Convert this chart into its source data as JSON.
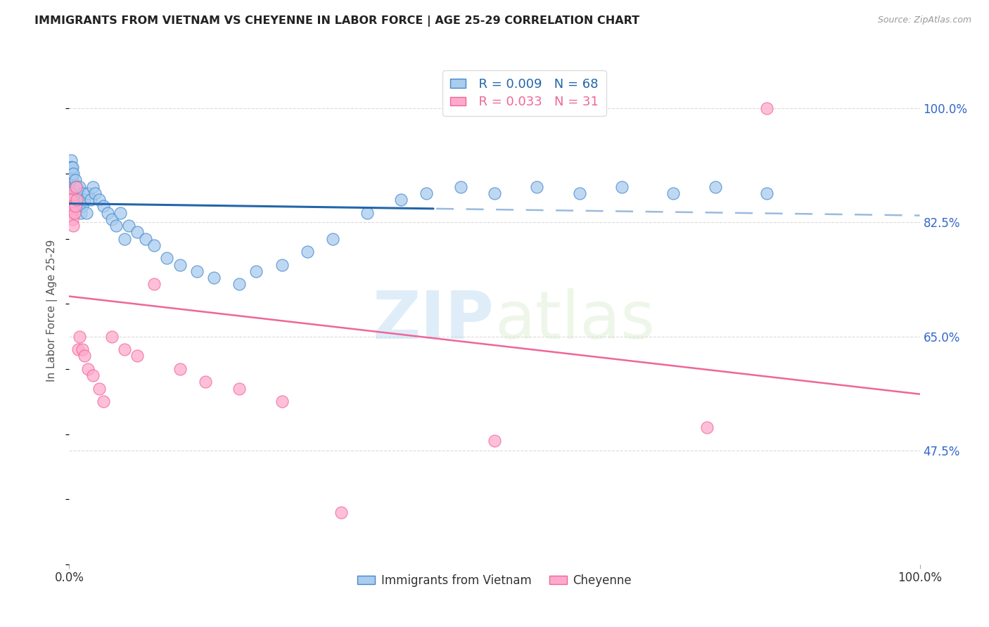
{
  "title": "IMMIGRANTS FROM VIETNAM VS CHEYENNE IN LABOR FORCE | AGE 25-29 CORRELATION CHART",
  "source": "Source: ZipAtlas.com",
  "ylabel": "In Labor Force | Age 25-29",
  "xlim": [
    0,
    1
  ],
  "ylim": [
    0.3,
    1.08
  ],
  "yticks": [
    0.475,
    0.65,
    0.825,
    1.0
  ],
  "ytick_labels": [
    "47.5%",
    "65.0%",
    "82.5%",
    "100.0%"
  ],
  "xtick_labels": [
    "0.0%",
    "100.0%"
  ],
  "legend_r_blue": "R = 0.009",
  "legend_n_blue": "N = 68",
  "legend_r_pink": "R = 0.033",
  "legend_n_pink": "N = 31",
  "blue_fill": "#aaccee",
  "blue_edge": "#4488cc",
  "blue_line": "#2266aa",
  "blue_dash": "#99bbdd",
  "pink_fill": "#ffaacc",
  "pink_edge": "#ee6699",
  "pink_line": "#ee6699",
  "watermark_color": "#cce4f7",
  "grid_color": "#cccccc",
  "title_color": "#222222",
  "source_color": "#999999",
  "ylabel_color": "#555555",
  "tick_color": "#333333",
  "right_tick_color": "#3366cc",
  "blue_scatter_x": [
    0.001,
    0.001,
    0.002,
    0.002,
    0.002,
    0.003,
    0.003,
    0.003,
    0.003,
    0.004,
    0.004,
    0.004,
    0.005,
    0.005,
    0.005,
    0.006,
    0.006,
    0.007,
    0.007,
    0.008,
    0.008,
    0.009,
    0.009,
    0.01,
    0.01,
    0.011,
    0.012,
    0.013,
    0.014,
    0.015,
    0.016,
    0.018,
    0.02,
    0.022,
    0.025,
    0.028,
    0.03,
    0.035,
    0.04,
    0.045,
    0.05,
    0.055,
    0.06,
    0.065,
    0.07,
    0.08,
    0.09,
    0.1,
    0.115,
    0.13,
    0.15,
    0.17,
    0.2,
    0.22,
    0.25,
    0.28,
    0.31,
    0.35,
    0.39,
    0.42,
    0.46,
    0.5,
    0.55,
    0.6,
    0.65,
    0.71,
    0.76,
    0.82
  ],
  "blue_scatter_y": [
    0.91,
    0.9,
    0.92,
    0.91,
    0.89,
    0.9,
    0.91,
    0.88,
    0.87,
    0.91,
    0.89,
    0.88,
    0.9,
    0.87,
    0.86,
    0.88,
    0.87,
    0.89,
    0.86,
    0.88,
    0.85,
    0.87,
    0.88,
    0.86,
    0.85,
    0.87,
    0.88,
    0.86,
    0.84,
    0.85,
    0.87,
    0.86,
    0.84,
    0.87,
    0.86,
    0.88,
    0.87,
    0.86,
    0.85,
    0.84,
    0.83,
    0.82,
    0.84,
    0.8,
    0.82,
    0.81,
    0.8,
    0.79,
    0.77,
    0.76,
    0.75,
    0.74,
    0.73,
    0.75,
    0.76,
    0.78,
    0.8,
    0.84,
    0.86,
    0.87,
    0.88,
    0.87,
    0.88,
    0.87,
    0.88,
    0.87,
    0.88,
    0.87
  ],
  "pink_scatter_x": [
    0.001,
    0.001,
    0.002,
    0.003,
    0.004,
    0.004,
    0.005,
    0.006,
    0.007,
    0.008,
    0.009,
    0.01,
    0.012,
    0.015,
    0.018,
    0.022,
    0.028,
    0.035,
    0.04,
    0.05,
    0.065,
    0.08,
    0.1,
    0.13,
    0.16,
    0.2,
    0.25,
    0.32,
    0.5,
    0.75,
    0.82
  ],
  "pink_scatter_y": [
    0.87,
    0.86,
    0.86,
    0.84,
    0.85,
    0.83,
    0.82,
    0.84,
    0.85,
    0.88,
    0.86,
    0.63,
    0.65,
    0.63,
    0.62,
    0.6,
    0.59,
    0.57,
    0.55,
    0.65,
    0.63,
    0.62,
    0.73,
    0.6,
    0.58,
    0.57,
    0.55,
    0.38,
    0.49,
    0.51,
    1.0
  ]
}
